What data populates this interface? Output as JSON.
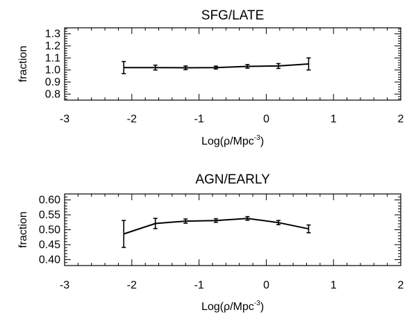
{
  "chart_data": [
    {
      "type": "line",
      "title": "SFG/LATE",
      "xlabel": "Log(ρ/Mpc⁻³)",
      "ylabel": "fraction",
      "xlim": [
        -3,
        2
      ],
      "ylim": [
        0.75,
        1.35
      ],
      "x_ticks": [
        "-3",
        "-2",
        "-1",
        "0",
        "1",
        "2"
      ],
      "y_ticks": [
        "0.8",
        "0.9",
        "1.0",
        "1.1",
        "1.2",
        "1.3"
      ],
      "grid": false,
      "series": [
        {
          "x": [
            -2.12,
            -1.65,
            -1.2,
            -0.75,
            -0.28,
            0.18,
            0.63
          ],
          "y": [
            1.02,
            1.02,
            1.018,
            1.02,
            1.03,
            1.033,
            1.05
          ],
          "yerr": [
            0.05,
            0.02,
            0.015,
            0.012,
            0.015,
            0.02,
            0.05
          ]
        }
      ]
    },
    {
      "type": "line",
      "title": "AGN/EARLY",
      "xlabel": "Log(ρ/Mpc⁻³)",
      "ylabel": "fraction",
      "xlim": [
        -3,
        2
      ],
      "ylim": [
        0.38,
        0.62
      ],
      "x_ticks": [
        "-3",
        "-2",
        "-1",
        "0",
        "1",
        "2"
      ],
      "y_ticks": [
        "0.40",
        "0.45",
        "0.50",
        "0.55",
        "0.60"
      ],
      "grid": false,
      "series": [
        {
          "x": [
            -2.12,
            -1.65,
            -1.2,
            -0.75,
            -0.28,
            0.18,
            0.63
          ],
          "y": [
            0.486,
            0.521,
            0.529,
            0.531,
            0.538,
            0.524,
            0.503
          ],
          "yerr": [
            0.045,
            0.017,
            0.007,
            0.006,
            0.006,
            0.007,
            0.013
          ]
        }
      ]
    }
  ]
}
